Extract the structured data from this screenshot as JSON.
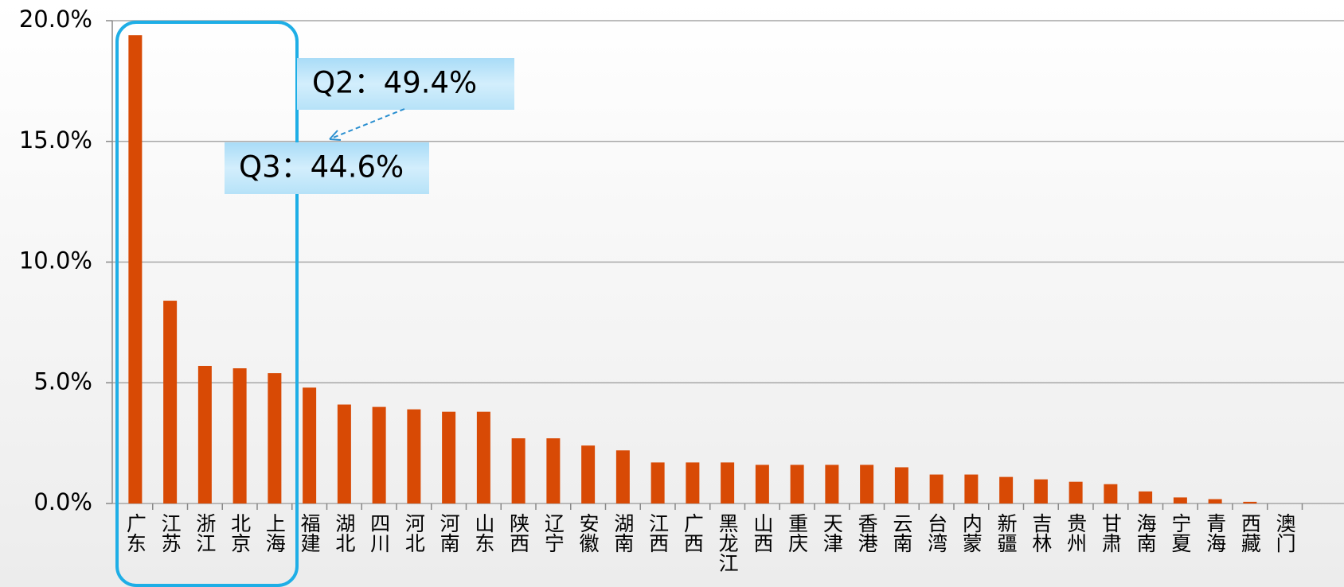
{
  "chart_data": {
    "type": "bar",
    "categories": [
      "广东",
      "江苏",
      "浙江",
      "北京",
      "上海",
      "福建",
      "湖北",
      "四川",
      "河北",
      "河南",
      "山东",
      "陕西",
      "辽宁",
      "安徽",
      "湖南",
      "江西",
      "广西",
      "黑龙江",
      "山西",
      "重庆",
      "天津",
      "香港",
      "云南",
      "台湾",
      "内蒙",
      "新疆",
      "吉林",
      "贵州",
      "甘肃",
      "海南",
      "宁夏",
      "青海",
      "西藏",
      "澳门"
    ],
    "values": [
      19.4,
      8.4,
      5.7,
      5.6,
      5.4,
      4.8,
      4.1,
      4.0,
      3.9,
      3.8,
      3.8,
      2.7,
      2.7,
      2.4,
      2.2,
      1.7,
      1.7,
      1.7,
      1.6,
      1.6,
      1.6,
      1.6,
      1.5,
      1.2,
      1.2,
      1.1,
      1.0,
      0.9,
      0.8,
      0.5,
      0.25,
      0.18,
      0.07,
      0
    ],
    "color": "#d84a05",
    "ylim": [
      0,
      20
    ],
    "yticks": [
      {
        "value": 0,
        "label": "0.0%"
      },
      {
        "value": 5,
        "label": "5.0%"
      },
      {
        "value": 10,
        "label": "10.0%"
      },
      {
        "value": 15,
        "label": "15.0%"
      },
      {
        "value": 20,
        "label": "20.0%"
      }
    ],
    "grid": true,
    "annotations": [
      "Q2：49.4%",
      "Q3：44.6%"
    ]
  }
}
